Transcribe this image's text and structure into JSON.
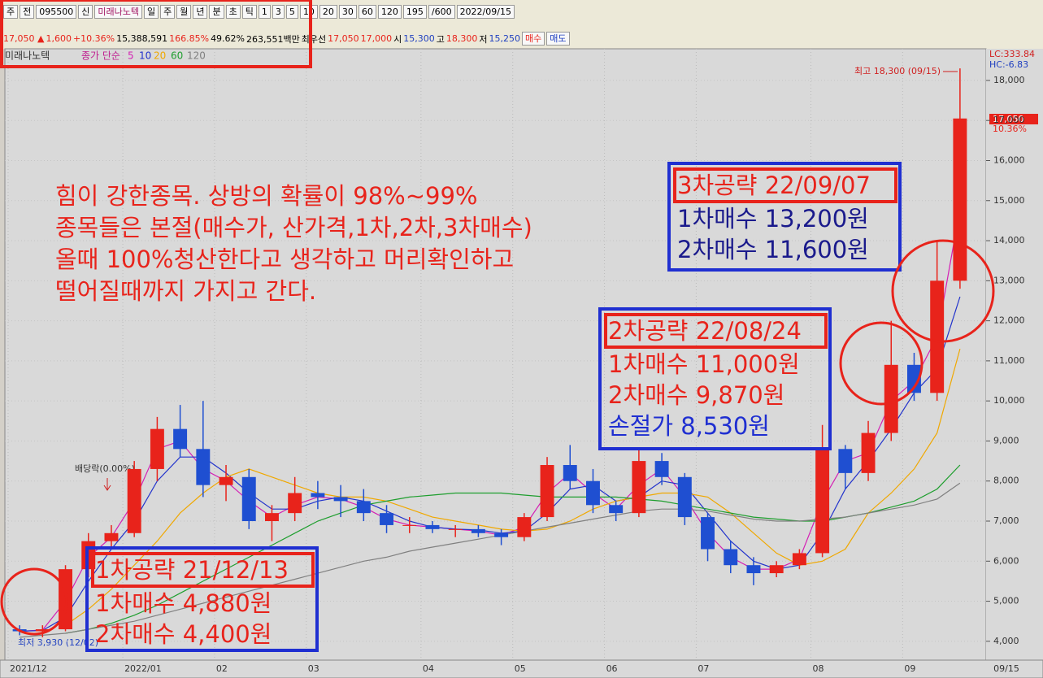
{
  "toolbar": {
    "row1": [
      "주",
      "전",
      "095500",
      "신",
      "미래나노텍",
      "일",
      "주",
      "월",
      "년",
      "분",
      "초",
      "틱",
      "1",
      "3",
      "5",
      "10",
      "20",
      "30",
      "60",
      "120",
      "195",
      "/600",
      "2022/09/15"
    ],
    "row2": [
      "17,050 ▲",
      "1,600",
      "+10.36%",
      "15,388,591",
      "166.85%",
      "49.62%",
      "263,551백만",
      "최우선",
      "17,050",
      "17,000",
      "시",
      "15,300",
      "고",
      "18,300",
      "저",
      "15,250",
      "매수",
      "매도"
    ]
  },
  "chart_data": {
    "type": "candlestick",
    "stock_name": "미래나노텍",
    "ma_label": "종가 단순",
    "categories": [
      "2021/12",
      null,
      null,
      null,
      null,
      "2022/01",
      null,
      null,
      null,
      "02",
      null,
      null,
      null,
      "03",
      null,
      null,
      null,
      null,
      "04",
      null,
      null,
      null,
      "05",
      null,
      null,
      null,
      "06",
      null,
      null,
      null,
      "07",
      null,
      null,
      null,
      null,
      "08",
      null,
      null,
      null,
      "09",
      null,
      null
    ],
    "end_label": "09/15",
    "open": [
      4300,
      4250,
      4300,
      5800,
      6500,
      6700,
      8300,
      9300,
      8800,
      7900,
      8100,
      7000,
      7200,
      7700,
      7600,
      7500,
      7200,
      6900,
      6900,
      6800,
      6800,
      6700,
      6600,
      7100,
      8400,
      8000,
      7400,
      7200,
      8500,
      8100,
      7100,
      6300,
      5900,
      5700,
      5900,
      6200,
      8800,
      8200,
      9200,
      10900,
      10200,
      13000
    ],
    "high": [
      4400,
      4400,
      5900,
      6700,
      6900,
      8500,
      9600,
      9900,
      10000,
      8400,
      8300,
      7400,
      8100,
      8000,
      7900,
      7800,
      7400,
      7100,
      7000,
      6900,
      6900,
      6800,
      7200,
      8600,
      8900,
      8300,
      7500,
      8800,
      8700,
      8200,
      7200,
      6500,
      6100,
      6000,
      6300,
      9400,
      8900,
      9500,
      12000,
      11200,
      14000,
      18300
    ],
    "low": [
      4150,
      4100,
      4250,
      5600,
      6300,
      6600,
      8000,
      8600,
      7600,
      7500,
      6800,
      6500,
      7000,
      7300,
      7100,
      7000,
      6700,
      6700,
      6700,
      6600,
      6600,
      6400,
      6500,
      7000,
      7800,
      7200,
      7000,
      7100,
      7900,
      6900,
      6000,
      5700,
      5400,
      5600,
      5800,
      6100,
      7800,
      8000,
      9000,
      10000,
      10000,
      12800
    ],
    "close": [
      4250,
      4300,
      5800,
      6500,
      6700,
      8300,
      9300,
      8800,
      7900,
      8100,
      7000,
      7200,
      7700,
      7600,
      7500,
      7200,
      6900,
      6900,
      6800,
      6800,
      6700,
      6600,
      7100,
      8400,
      8000,
      7400,
      7200,
      8500,
      8100,
      7100,
      6300,
      5900,
      5700,
      5900,
      6200,
      8800,
      8200,
      9200,
      10900,
      10200,
      13000,
      17050
    ],
    "up_color": "#e8231b",
    "down_color": "#1f4fd1",
    "series": [
      {
        "name": "5",
        "color": "#d41fb4",
        "values": [
          4250,
          4280,
          5000,
          6100,
          6600,
          7500,
          8800,
          9000,
          8300,
          8000,
          7500,
          7100,
          7400,
          7600,
          7550,
          7350,
          7050,
          6900,
          6850,
          6800,
          6750,
          6650,
          6850,
          7700,
          8200,
          7700,
          7300,
          7900,
          8300,
          7600,
          6700,
          6100,
          5800,
          5800,
          6050,
          7500,
          8500,
          8700,
          10000,
          10500,
          11600,
          14800
        ]
      },
      {
        "name": "10",
        "color": "#2233cc",
        "values": [
          4250,
          4270,
          4600,
          5500,
          6300,
          7000,
          8000,
          8600,
          8600,
          8200,
          7700,
          7300,
          7300,
          7500,
          7600,
          7500,
          7250,
          7000,
          6850,
          6800,
          6780,
          6700,
          6750,
          7200,
          7800,
          7900,
          7500,
          7600,
          8000,
          7900,
          7200,
          6500,
          6000,
          5800,
          5900,
          6700,
          7800,
          8500,
          9300,
          10200,
          10800,
          12600
        ]
      },
      {
        "name": "20",
        "color": "#f0a800",
        "values": [
          null,
          null,
          4400,
          4800,
          5300,
          5900,
          6500,
          7200,
          7700,
          8100,
          8300,
          8100,
          7900,
          7700,
          7600,
          7600,
          7500,
          7300,
          7100,
          7000,
          6900,
          6800,
          6750,
          6800,
          7000,
          7300,
          7500,
          7600,
          7700,
          7700,
          7600,
          7200,
          6700,
          6200,
          5900,
          6000,
          6300,
          7200,
          7700,
          8300,
          9200,
          11300
        ]
      },
      {
        "name": "60",
        "color": "#1e9e2e",
        "values": [
          null,
          null,
          4200,
          4300,
          4450,
          4650,
          4900,
          5200,
          5500,
          5800,
          6100,
          6400,
          6700,
          7000,
          7200,
          7400,
          7500,
          7600,
          7650,
          7700,
          7700,
          7700,
          7650,
          7600,
          7600,
          7600,
          7600,
          7550,
          7500,
          7400,
          7300,
          7200,
          7100,
          7050,
          7000,
          7000,
          7100,
          7200,
          7350,
          7500,
          7800,
          8400
        ]
      },
      {
        "name": "120",
        "color": "#808080",
        "values": [
          4100,
          4150,
          4200,
          4300,
          4400,
          4500,
          4650,
          4800,
          4950,
          5100,
          5250,
          5400,
          5550,
          5700,
          5850,
          6000,
          6100,
          6250,
          6350,
          6450,
          6550,
          6650,
          6750,
          6850,
          6950,
          7050,
          7150,
          7250,
          7300,
          7300,
          7250,
          7150,
          7050,
          7000,
          7000,
          7050,
          7100,
          7200,
          7300,
          7400,
          7550,
          7950
        ]
      }
    ],
    "ylim": [
      3530,
      18790
    ],
    "yticks": [
      {
        "value": 4000,
        "label": "4,000"
      },
      {
        "value": 5000,
        "label": "5,000"
      },
      {
        "value": 6000,
        "label": "6,000"
      },
      {
        "value": 7000,
        "label": "7,000"
      },
      {
        "value": 8000,
        "label": "8,000"
      },
      {
        "value": 9000,
        "label": "9,000"
      },
      {
        "value": 10000,
        "label": "10,000"
      },
      {
        "value": 11000,
        "label": "11,000"
      },
      {
        "value": 12000,
        "label": "12,000"
      },
      {
        "value": 13000,
        "label": "13,000"
      },
      {
        "value": 14000,
        "label": "14,000"
      },
      {
        "value": 15000,
        "label": "15,000"
      },
      {
        "value": 16000,
        "label": "16,000"
      },
      {
        "value": 17000,
        "label": "17,000"
      },
      {
        "value": 18000,
        "label": "18,000"
      }
    ],
    "grid": true,
    "lc_label": "LC:333.84",
    "hc_label": "HC:-6.83",
    "last_price_label": "17,050",
    "last_change_label": "10.36%",
    "high_label": "최고 18,300 (09/15)",
    "low_label": "최저 3,930 (12/02)",
    "dividend_label": "배당락(0.00%)",
    "note": [
      "힘이 강한종목. 상방의 확률이 98%~99%",
      "종목들은 본절(매수가, 산가격,1차,2차,3차매수)",
      "올때 100%청산한다고 생각하고 머리확인하고",
      "떨어질때까지 가지고 간다."
    ],
    "callouts": [
      {
        "title": "1차공략 21/12/13",
        "lines": [
          "1차매수 4,880원",
          "2차매수 4,400원"
        ]
      },
      {
        "title": "2차공략 22/08/24",
        "lines": [
          "1차매수 11,000원",
          "2차매수 9,870원",
          "손절가 8,530원"
        ]
      },
      {
        "title": "3차공략 22/09/07",
        "lines": [
          "1차매수 13,200원",
          "2차매수 11,600원"
        ]
      }
    ]
  }
}
